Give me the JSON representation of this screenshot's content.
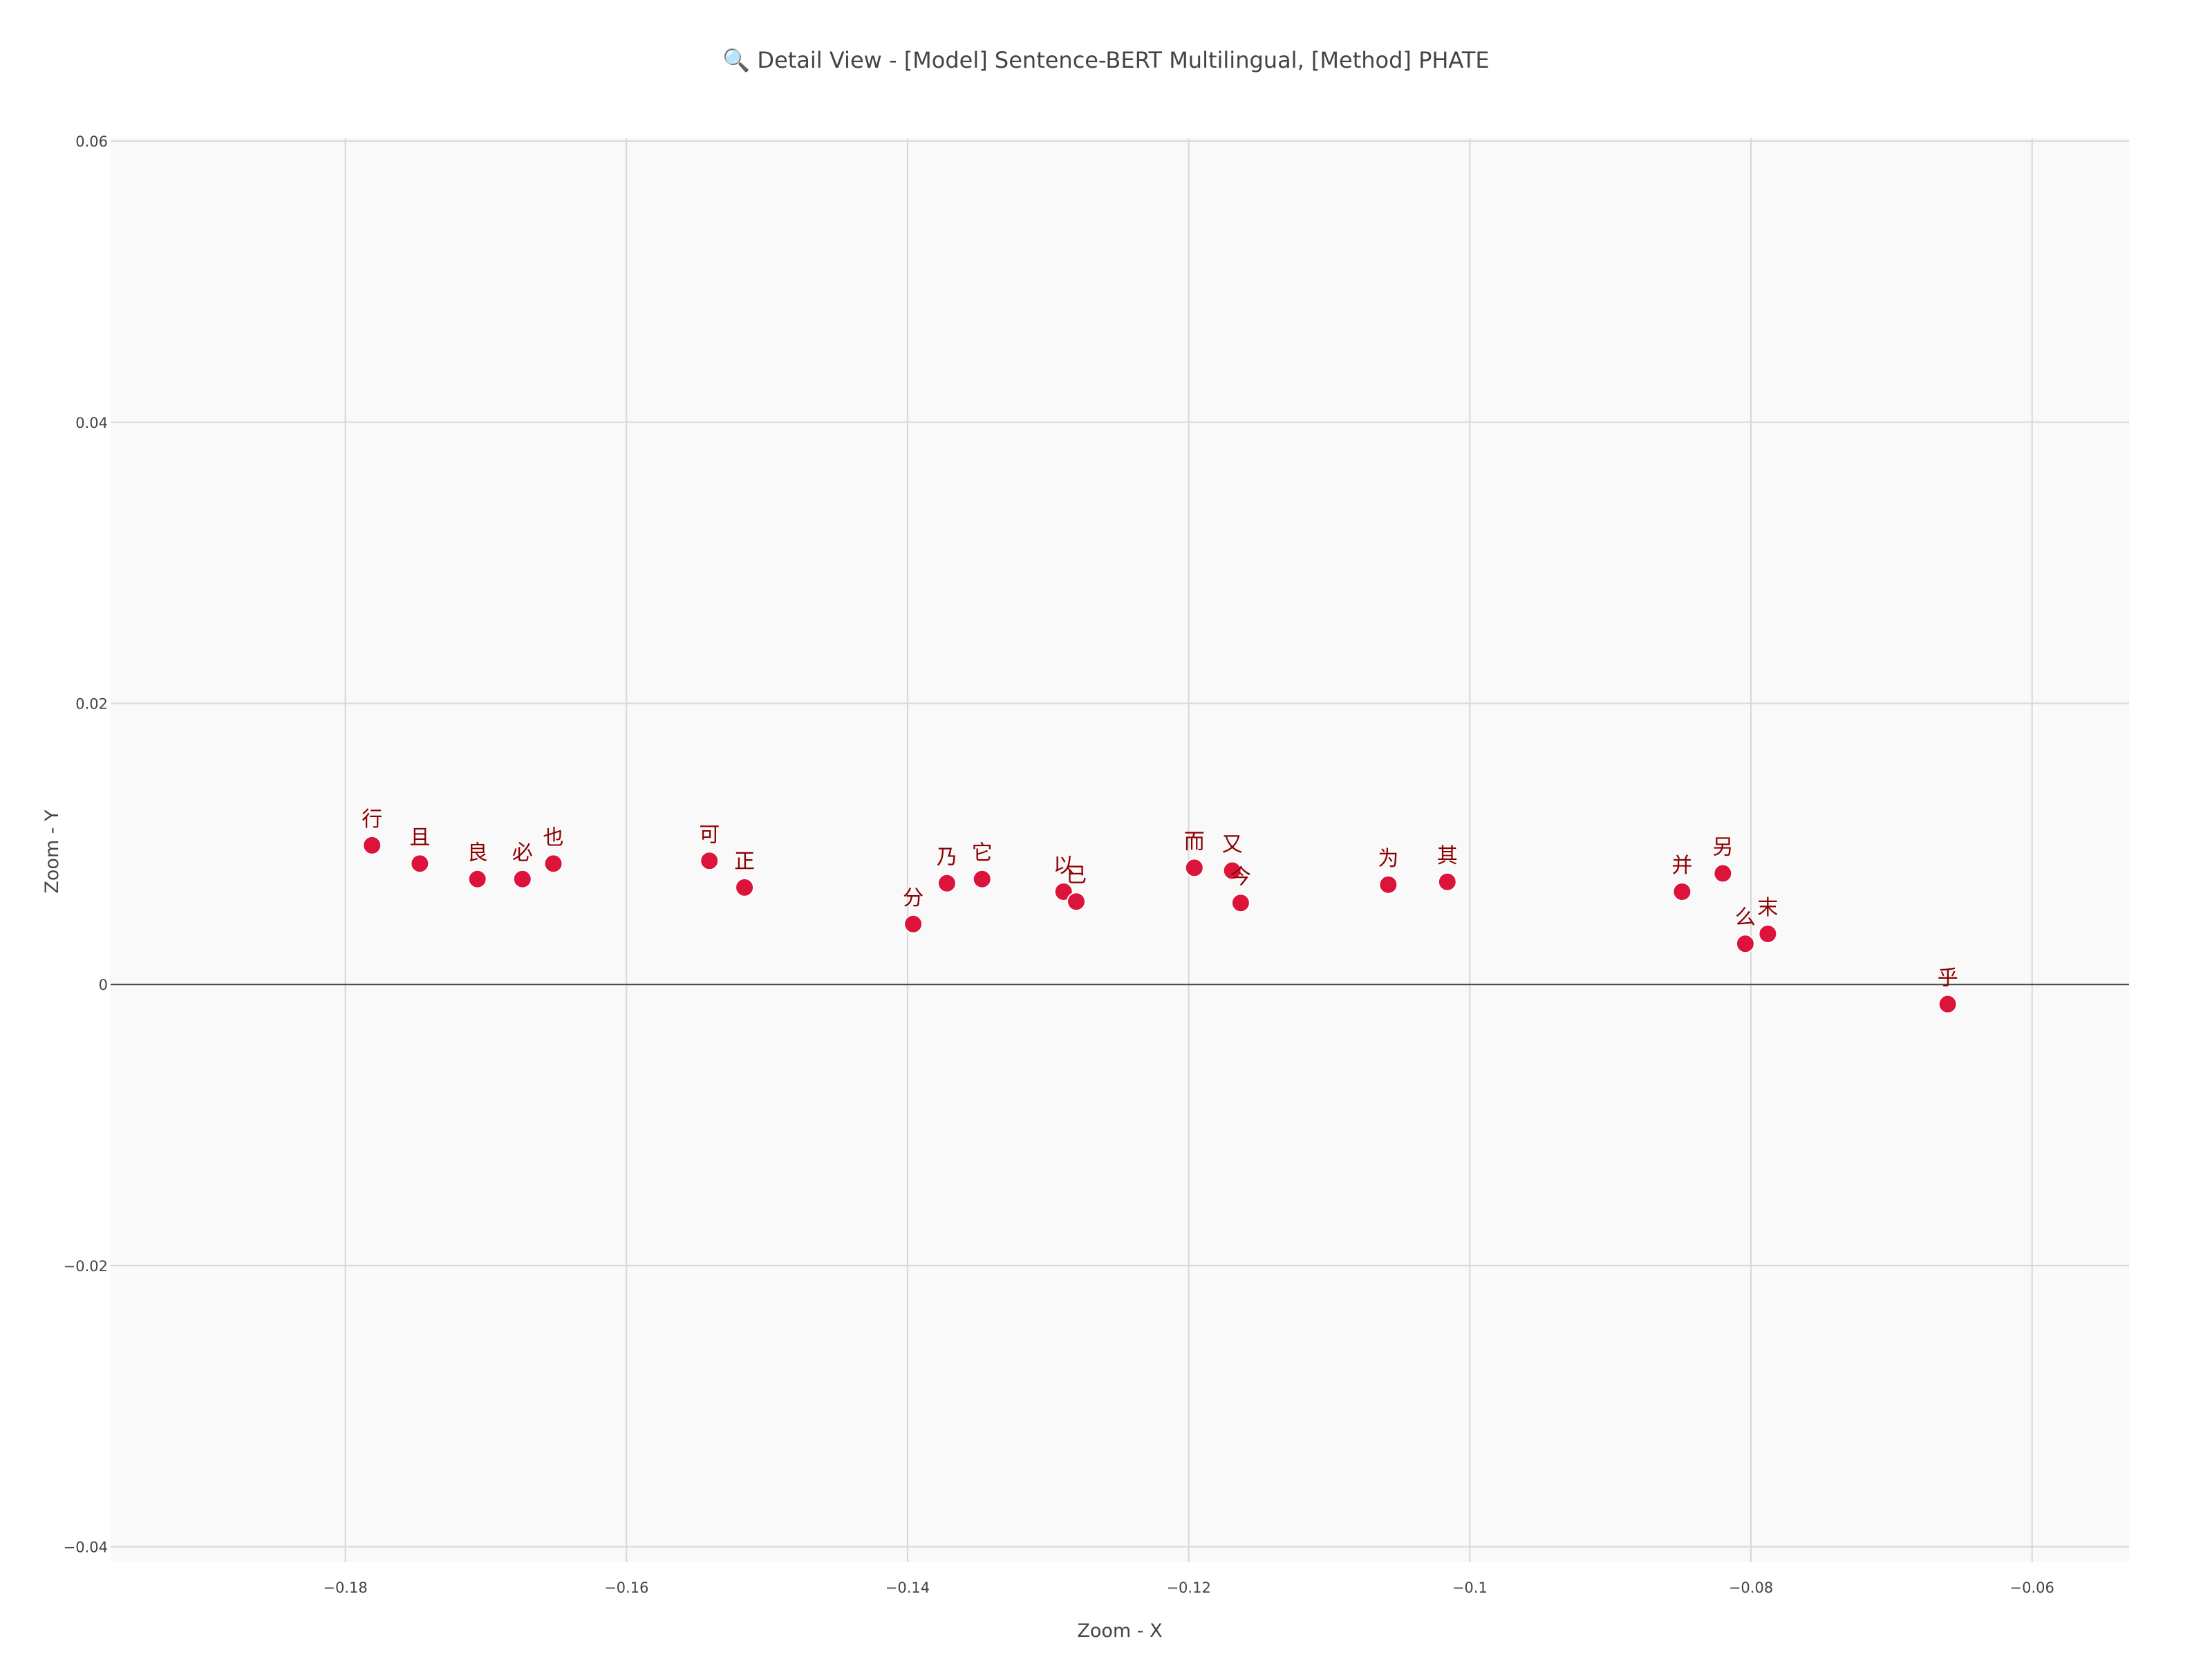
{
  "chart_data": {
    "type": "scatter",
    "title": "🔍 Detail View - [Model] Sentence-BERT Multilingual, [Method] PHATE",
    "xlabel": "Zoom - X",
    "ylabel": "Zoom - Y",
    "xlim": [
      -0.1967,
      -0.0531
    ],
    "ylim": [
      -0.0411,
      0.0602
    ],
    "x_ticks": [
      -0.18,
      -0.16,
      -0.14,
      -0.12,
      -0.1,
      -0.08,
      -0.06
    ],
    "x_tick_labels": [
      "−0.18",
      "−0.16",
      "−0.14",
      "−0.12",
      "−0.1",
      "−0.08",
      "−0.06"
    ],
    "y_ticks": [
      -0.04,
      -0.02,
      0,
      0.02,
      0.04,
      0.06
    ],
    "y_tick_labels": [
      "−0.04",
      "−0.02",
      "0",
      "0.02",
      "0.04",
      "0.06"
    ],
    "grid": true,
    "zero_line": true,
    "marker_color": "#dc143c",
    "label_color": "#8b0000",
    "plot_bg": "#f9f9f9",
    "points": [
      {
        "label": "行",
        "x": -0.1781,
        "y": 0.0099
      },
      {
        "label": "且",
        "x": -0.1747,
        "y": 0.0086
      },
      {
        "label": "良",
        "x": -0.1706,
        "y": 0.0075
      },
      {
        "label": "必",
        "x": -0.1674,
        "y": 0.0075
      },
      {
        "label": "也",
        "x": -0.1652,
        "y": 0.0086
      },
      {
        "label": "可",
        "x": -0.1541,
        "y": 0.0088
      },
      {
        "label": "正",
        "x": -0.1516,
        "y": 0.0069
      },
      {
        "label": "分",
        "x": -0.1396,
        "y": 0.0043
      },
      {
        "label": "乃",
        "x": -0.1372,
        "y": 0.0072
      },
      {
        "label": "它",
        "x": -0.1347,
        "y": 0.0075
      },
      {
        "label": "以",
        "x": -0.1289,
        "y": 0.0066
      },
      {
        "label": "已",
        "x": -0.128,
        "y": 0.0059
      },
      {
        "label": "而",
        "x": -0.1196,
        "y": 0.0083
      },
      {
        "label": "又",
        "x": -0.1169,
        "y": 0.0081
      },
      {
        "label": "今",
        "x": -0.1163,
        "y": 0.0058
      },
      {
        "label": "为",
        "x": -0.1058,
        "y": 0.0071
      },
      {
        "label": "其",
        "x": -0.1016,
        "y": 0.0073
      },
      {
        "label": "并",
        "x": -0.0849,
        "y": 0.0066
      },
      {
        "label": "另",
        "x": -0.082,
        "y": 0.0079
      },
      {
        "label": "么",
        "x": -0.0804,
        "y": 0.0029
      },
      {
        "label": "末",
        "x": -0.0788,
        "y": 0.0036
      },
      {
        "label": "乎",
        "x": -0.066,
        "y": -0.0014
      }
    ]
  }
}
